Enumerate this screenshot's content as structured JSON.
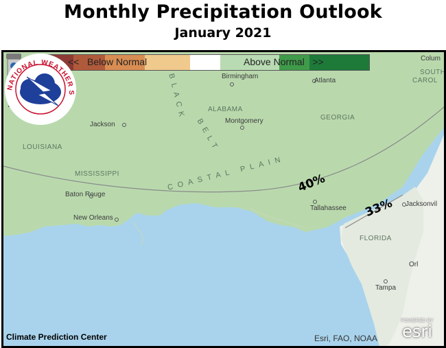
{
  "header": {
    "title": "Monthly Precipitation Outlook",
    "subtitle": "January 2021"
  },
  "legend": {
    "below_label": "<<   Below Normal",
    "above_label": "Above Normal   >>",
    "colors": [
      "#8e3b35",
      "#bd5d3c",
      "#e09a57",
      "#f0c98c",
      "#ffffff",
      "#b9dbb3",
      "#8ac782",
      "#3f9b4a",
      "#1d7a39"
    ]
  },
  "map": {
    "places": {
      "birmingham": "Birmingham",
      "atlanta": "Atlanta",
      "jackson": "Jackson",
      "montgomery": "Montgomery",
      "baton_rouge": "Baton Rouge",
      "new_orleans": "New Orleans",
      "tallahassee": "Tallahassee",
      "jacksonville": "Jacksonvil",
      "tampa": "Tampa",
      "orlando": "Orl",
      "columbia": "Colum"
    },
    "states": {
      "alabama": "ALABAMA",
      "georgia": "GEORGIA",
      "louisiana": "LOUISIANA",
      "mississippi": "MISSISSIPPI",
      "florida": "FLORIDA",
      "south_carolina_1": "SOUTH",
      "south_carolina_2": "CAROL"
    },
    "regions": {
      "black_belt_1": "BLACK",
      "black_belt_2": "BELT",
      "coastal_plain": "COASTAL  PLAIN"
    },
    "probabilities": {
      "p40": "40%",
      "p33": "33%"
    },
    "colors": {
      "land_above": "#b9d9ad",
      "land_neutral": "#eef0ea",
      "water": "#a9d3ec"
    }
  },
  "footer": {
    "cpc": "Climate Prediction Center",
    "credit": "Esri, FAO, NOAA",
    "esri_powered": "POWERED BY",
    "esri_logo": "esri",
    "nws_seal": "NATIONAL WEATHER SERVICE"
  }
}
